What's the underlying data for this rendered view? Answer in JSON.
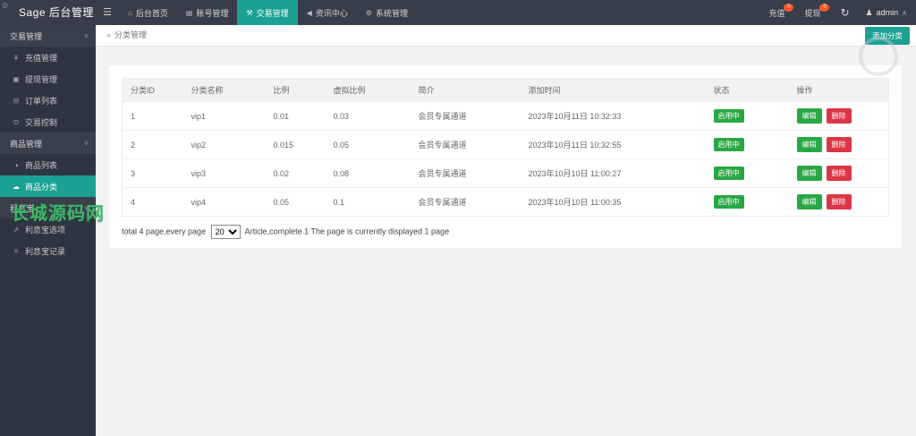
{
  "colors": {
    "accent_teal": "#1aa192",
    "header_bg": "#373d49",
    "sidebar_bg": "#2f3540",
    "status_green": "#28a745",
    "delete_red": "#dc3545",
    "notify_orange": "#ff5722",
    "watermark_green": "#3eb869"
  },
  "watermarks": {
    "corner_glyph": "◎",
    "site_text": "长城源码网"
  },
  "header": {
    "logo": "Sage 后台管理",
    "hamburger_glyph": "☰",
    "nav": [
      {
        "name": "nav-tab-dashboard",
        "label": "后台首页",
        "icon": "home-icon",
        "glyph": "⌂",
        "active": false
      },
      {
        "name": "nav-tab-accounts",
        "label": "账号管理",
        "icon": "id-card-icon",
        "glyph": "▤",
        "active": false
      },
      {
        "name": "nav-tab-trade",
        "label": "交易管理",
        "icon": "wrench-icon",
        "glyph": "⚒",
        "active": true
      },
      {
        "name": "nav-tab-news",
        "label": "资讯中心",
        "icon": "bullhorn-icon",
        "glyph": "◀",
        "active": false
      },
      {
        "name": "nav-tab-system",
        "label": "系统管理",
        "icon": "gears-icon",
        "glyph": "⚙",
        "active": false
      }
    ],
    "right": {
      "recharge": {
        "label": "充值",
        "badge": "0"
      },
      "withdraw": {
        "label": "提现",
        "badge": "0"
      },
      "refresh_glyph": "↻",
      "user": {
        "icon_glyph": "♟",
        "name": "admin",
        "caret": "∧"
      }
    }
  },
  "sidebar": {
    "entries": [
      {
        "type": "section",
        "name": "sidebar-section-trade",
        "label": "交易管理",
        "chevron": "∨"
      },
      {
        "type": "item",
        "name": "sidebar-item-recharge",
        "label": "充值管理",
        "icon": "yen-icon",
        "glyph": "¥",
        "active": false
      },
      {
        "type": "item",
        "name": "sidebar-item-withdraw",
        "label": "提现管理",
        "icon": "card-icon",
        "glyph": "▣",
        "active": false
      },
      {
        "type": "item",
        "name": "sidebar-item-orders",
        "label": "订单列表",
        "icon": "cart-icon",
        "glyph": "⊟",
        "active": false
      },
      {
        "type": "item",
        "name": "sidebar-item-trade-control",
        "label": "交易控制",
        "icon": "gauge-icon",
        "glyph": "⊙",
        "active": false
      },
      {
        "type": "section",
        "name": "sidebar-section-goods",
        "label": "商品管理",
        "chevron": "∨"
      },
      {
        "type": "item",
        "name": "sidebar-item-goods-list",
        "label": "商品列表",
        "icon": "pie-icon",
        "glyph": "◑",
        "active": false
      },
      {
        "type": "item",
        "name": "sidebar-item-goods-category",
        "label": "商品分类",
        "icon": "cloud-icon",
        "glyph": "☁",
        "active": true
      },
      {
        "type": "section",
        "name": "sidebar-section-lixibao",
        "label": "利息宝",
        "chevron": "∨"
      },
      {
        "type": "item",
        "name": "sidebar-item-lixibao-options",
        "label": "利息宝选项",
        "icon": "chart-icon",
        "glyph": "⇗",
        "active": false
      },
      {
        "type": "item",
        "name": "sidebar-item-lixibao-records",
        "label": "利息宝记录",
        "icon": "list-icon",
        "glyph": "≡",
        "active": false
      }
    ]
  },
  "breadcrumb": {
    "arrow": "»",
    "label": "分类管理"
  },
  "add_button_label": "添加分类",
  "table": {
    "headers": [
      "分类ID",
      "分类名称",
      "比例",
      "虚拟比例",
      "简介",
      "添加时间",
      "状态",
      "操作"
    ],
    "rows": [
      {
        "id": "1",
        "name": "vip1",
        "ratio": "0.01",
        "virtual_ratio": "0.03",
        "intro": "会员专属通道",
        "created_at": "2023年10月11日 10:32:33",
        "status": "启用中"
      },
      {
        "id": "2",
        "name": "vip2",
        "ratio": "0.015",
        "virtual_ratio": "0.05",
        "intro": "会员专属通道",
        "created_at": "2023年10月11日 10:32:55",
        "status": "启用中"
      },
      {
        "id": "3",
        "name": "vip3",
        "ratio": "0.02",
        "virtual_ratio": "0.08",
        "intro": "会员专属通道",
        "created_at": "2023年10月10日 11:00:27",
        "status": "启用中"
      },
      {
        "id": "4",
        "name": "vip4",
        "ratio": "0.05",
        "virtual_ratio": "0.1",
        "intro": "会员专属通道",
        "created_at": "2023年10月10日 11:00:35",
        "status": "启用中"
      }
    ],
    "actions": {
      "edit": "编辑",
      "delete": "删除"
    }
  },
  "pagination": {
    "prefix": "total 4 page,every page",
    "per_page": "20",
    "suffix": "Article,complete 1 The page is currently displayed 1 page"
  }
}
